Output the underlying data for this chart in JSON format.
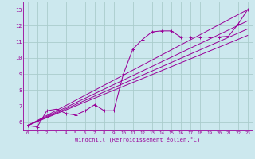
{
  "xlabel": "Windchill (Refroidissement éolien,°C)",
  "bg_color": "#cce8ee",
  "grid_color": "#aacccc",
  "line_color": "#990099",
  "xlim": [
    -0.5,
    23.5
  ],
  "ylim": [
    5.5,
    13.5
  ],
  "xticks": [
    0,
    1,
    2,
    3,
    4,
    5,
    6,
    7,
    8,
    9,
    10,
    11,
    12,
    13,
    14,
    15,
    16,
    17,
    18,
    19,
    20,
    21,
    22,
    23
  ],
  "yticks": [
    6,
    7,
    8,
    9,
    10,
    11,
    12,
    13
  ],
  "curve_x": [
    0,
    1,
    2,
    3,
    4,
    5,
    6,
    7,
    8,
    9,
    10,
    11,
    12,
    13,
    14,
    15,
    16,
    17,
    18,
    19,
    20,
    21,
    22,
    23
  ],
  "curve_y": [
    5.8,
    5.72,
    6.72,
    6.82,
    6.55,
    6.45,
    6.72,
    7.1,
    6.72,
    6.72,
    9.0,
    10.55,
    11.15,
    11.62,
    11.68,
    11.68,
    11.3,
    11.3,
    11.3,
    11.3,
    11.3,
    11.35,
    12.1,
    13.0
  ],
  "straight_lines": [
    {
      "x": [
        0,
        23
      ],
      "y": [
        5.8,
        13.0
      ]
    },
    {
      "x": [
        0,
        23
      ],
      "y": [
        5.8,
        12.3
      ]
    },
    {
      "x": [
        0,
        23
      ],
      "y": [
        5.8,
        11.8
      ]
    },
    {
      "x": [
        0,
        23
      ],
      "y": [
        5.8,
        11.4
      ]
    }
  ]
}
